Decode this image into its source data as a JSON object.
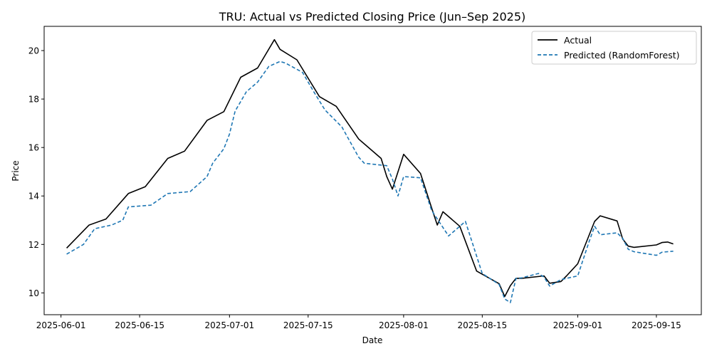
{
  "chart_data": {
    "type": "line",
    "title": "TRU: Actual vs Predicted Closing Price (Jun–Sep 2025)",
    "xlabel": "Date",
    "ylabel": "Price",
    "xlim": [
      "2025-05-29",
      "2025-09-23"
    ],
    "ylim": [
      9.1,
      21.0
    ],
    "x_ticks": [
      "2025-06-01",
      "2025-06-15",
      "2025-07-01",
      "2025-07-15",
      "2025-08-01",
      "2025-08-15",
      "2025-09-01",
      "2025-09-15"
    ],
    "y_ticks": [
      10,
      12,
      14,
      16,
      18,
      20
    ],
    "grid": false,
    "legend_position": "top-right",
    "series": [
      {
        "name": "Actual",
        "color": "#000000",
        "style": "solid",
        "x": [
          "2025-06-02",
          "2025-06-06",
          "2025-06-09",
          "2025-06-13",
          "2025-06-16",
          "2025-06-20",
          "2025-06-23",
          "2025-06-27",
          "2025-06-30",
          "2025-07-03",
          "2025-07-06",
          "2025-07-09",
          "2025-07-10",
          "2025-07-13",
          "2025-07-17",
          "2025-07-20",
          "2025-07-24",
          "2025-07-28",
          "2025-07-29",
          "2025-07-30",
          "2025-08-01",
          "2025-08-04",
          "2025-08-06",
          "2025-08-07",
          "2025-08-08",
          "2025-08-11",
          "2025-08-14",
          "2025-08-18",
          "2025-08-19",
          "2025-08-20",
          "2025-08-21",
          "2025-08-22",
          "2025-08-26",
          "2025-08-27",
          "2025-08-29",
          "2025-08-30",
          "2025-09-01",
          "2025-09-04",
          "2025-09-05",
          "2025-09-08",
          "2025-09-09",
          "2025-09-10",
          "2025-09-11",
          "2025-09-15",
          "2025-09-16",
          "2025-09-17",
          "2025-09-18"
        ],
        "values": [
          11.85,
          12.8,
          13.05,
          14.1,
          14.38,
          15.55,
          15.85,
          17.12,
          17.48,
          18.9,
          19.28,
          20.45,
          20.05,
          19.62,
          18.1,
          17.7,
          16.35,
          15.55,
          14.8,
          14.28,
          15.72,
          14.93,
          13.5,
          12.8,
          13.35,
          12.75,
          10.9,
          10.38,
          9.85,
          10.3,
          10.6,
          10.6,
          10.7,
          10.4,
          10.47,
          10.7,
          11.2,
          12.95,
          13.18,
          12.97,
          12.22,
          11.93,
          11.88,
          11.98,
          12.08,
          12.1,
          12.02
        ]
      },
      {
        "name": "Predicted (RandomForest)",
        "color": "#1f77b4",
        "style": "dashed",
        "x": [
          "2025-06-02",
          "2025-06-05",
          "2025-06-07",
          "2025-06-10",
          "2025-06-12",
          "2025-06-13",
          "2025-06-17",
          "2025-06-20",
          "2025-06-24",
          "2025-06-27",
          "2025-06-28",
          "2025-06-30",
          "2025-07-01",
          "2025-07-02",
          "2025-07-04",
          "2025-07-06",
          "2025-07-08",
          "2025-07-10",
          "2025-07-11",
          "2025-07-14",
          "2025-07-16",
          "2025-07-18",
          "2025-07-21",
          "2025-07-24",
          "2025-07-25",
          "2025-07-29",
          "2025-07-30",
          "2025-07-31",
          "2025-08-01",
          "2025-08-04",
          "2025-08-06",
          "2025-08-09",
          "2025-08-12",
          "2025-08-15",
          "2025-08-18",
          "2025-08-19",
          "2025-08-20",
          "2025-08-21",
          "2025-08-22",
          "2025-08-25",
          "2025-08-26",
          "2025-08-27",
          "2025-08-29",
          "2025-09-01",
          "2025-09-03",
          "2025-09-04",
          "2025-09-05",
          "2025-09-08",
          "2025-09-09",
          "2025-09-10",
          "2025-09-11",
          "2025-09-15",
          "2025-09-16",
          "2025-09-18"
        ],
        "values": [
          11.6,
          12.0,
          12.65,
          12.8,
          13.0,
          13.55,
          13.62,
          14.1,
          14.18,
          14.8,
          15.35,
          15.95,
          16.55,
          17.5,
          18.3,
          18.7,
          19.35,
          19.55,
          19.48,
          19.1,
          18.3,
          17.55,
          16.85,
          15.6,
          15.35,
          15.25,
          14.7,
          14.0,
          14.8,
          14.75,
          13.4,
          12.35,
          12.95,
          10.8,
          10.35,
          9.75,
          9.6,
          10.6,
          10.62,
          10.8,
          10.65,
          10.28,
          10.55,
          10.7,
          12.1,
          12.75,
          12.4,
          12.48,
          12.25,
          11.8,
          11.7,
          11.55,
          11.68,
          11.72
        ]
      }
    ]
  }
}
